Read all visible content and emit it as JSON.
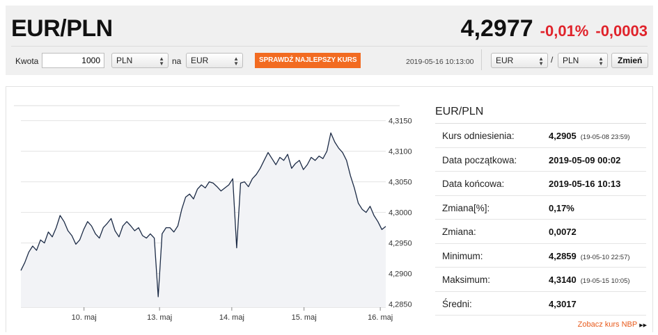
{
  "header": {
    "pair": "EUR/PLN",
    "rate": "4,2977",
    "change_pct": "-0,01%",
    "change_abs": "-0,0003"
  },
  "converter": {
    "amount_label": "Kwota",
    "amount_value": "1000",
    "from_currency": "PLN",
    "to_label": "na",
    "to_currency": "EUR",
    "check_button": "SPRAWDŹ NAJLEPSZY KURS",
    "timestamp": "2019-05-16 10:13:00",
    "pair_base": "EUR",
    "pair_separator": "/",
    "pair_quote": "PLN",
    "change_button": "Zmień"
  },
  "stats": {
    "title": "EUR/PLN",
    "rows": [
      {
        "label": "Kurs odniesienia:",
        "value": "4,2905",
        "time": "(19-05-08 23:59)"
      },
      {
        "label": "Data początkowa:",
        "value": "2019-05-09 00:02",
        "time": ""
      },
      {
        "label": "Data końcowa:",
        "value": "2019-05-16 10:13",
        "time": ""
      },
      {
        "label": "Zmiana[%]:",
        "value": "0,17%",
        "time": ""
      },
      {
        "label": "Zmiana:",
        "value": "0,0072",
        "time": ""
      },
      {
        "label": "Minimum:",
        "value": "4,2859",
        "time": "(19-05-10 22:57)"
      },
      {
        "label": "Maksimum:",
        "value": "4,3140",
        "time": "(19-05-15 10:05)"
      },
      {
        "label": "Średni:",
        "value": "4,3017",
        "time": ""
      }
    ],
    "nbp_link": "Zobacz kurs NBP"
  },
  "colors": {
    "accent": "#f26b21",
    "negative": "#e0232b",
    "line": "#1b2a45",
    "area": "#f2f3f6"
  },
  "chart_data": {
    "type": "line",
    "title": "",
    "xlabel": "",
    "ylabel": "",
    "ylim": [
      4.2845,
      4.317
    ],
    "y_ticks": [
      "4,2850",
      "4,2900",
      "4,2950",
      "4,3000",
      "4,3050",
      "4,3100",
      "4,3150"
    ],
    "x_ticks": [
      "10. maj",
      "13. maj",
      "14. maj",
      "15. maj",
      "16. maj"
    ],
    "series": [
      {
        "values": [
          4.2905,
          4.2918,
          4.2935,
          4.2945,
          4.2938,
          4.2955,
          4.295,
          4.2968,
          4.296,
          4.2975,
          4.2995,
          4.2985,
          4.297,
          4.2962,
          4.2948,
          4.2955,
          4.2972,
          4.2985,
          4.2978,
          4.2965,
          4.2958,
          4.2975,
          4.2982,
          4.299,
          4.297,
          4.296,
          4.2978,
          4.2985,
          4.2978,
          4.297,
          4.2975,
          4.2962,
          4.2958,
          4.2965,
          4.2958,
          4.2862,
          4.2965,
          4.2975,
          4.2975,
          4.2968,
          4.2978,
          4.3005,
          4.3025,
          4.303,
          4.3022,
          4.3038,
          4.3045,
          4.304,
          4.305,
          4.3048,
          4.3042,
          4.3035,
          4.304,
          4.3045,
          4.3055,
          4.2942,
          4.3048,
          4.305,
          4.3042,
          4.3055,
          4.3062,
          4.3072,
          4.3085,
          4.3098,
          4.3088,
          4.3078,
          4.309,
          4.3085,
          4.3095,
          4.3072,
          4.308,
          4.3085,
          4.307,
          4.3078,
          4.309,
          4.3085,
          4.3092,
          4.3088,
          4.31,
          4.313,
          4.3115,
          4.3105,
          4.3098,
          4.3085,
          4.306,
          4.304,
          4.3015,
          4.3005,
          4.3,
          4.301,
          4.2995,
          4.2985,
          4.2972,
          4.2977
        ]
      }
    ]
  }
}
